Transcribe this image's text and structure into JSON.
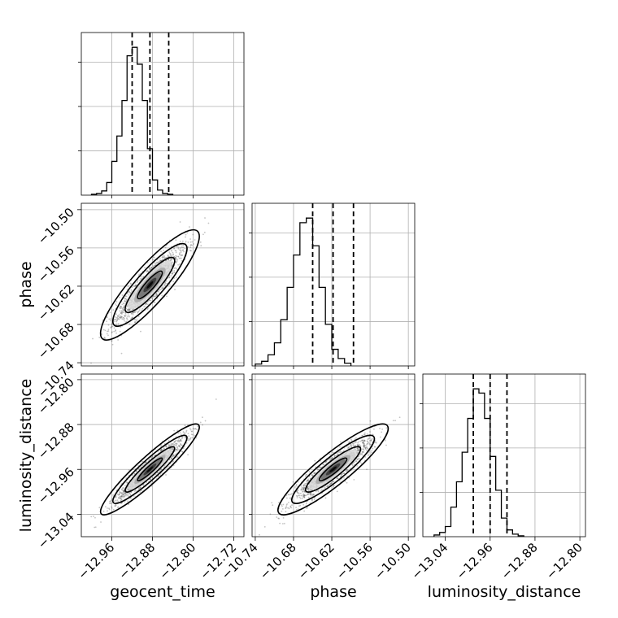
{
  "colors": {
    "line": "#000000",
    "grid": "#b0b0b0",
    "scatter": "#555555"
  },
  "chart_data": {
    "type": "corner",
    "title": "",
    "grid": true,
    "parameters": [
      {
        "name": "geocent_time",
        "label": "geocent_time",
        "range": [
          -13.02,
          -12.7
        ],
        "ticks": [
          -12.96,
          -12.88,
          -12.8,
          -12.72
        ],
        "tick_labels": [
          "−12.96",
          "−12.88",
          "−12.80",
          "−12.72"
        ],
        "quantiles": [
          -12.92,
          -12.885,
          -12.848
        ],
        "hist_edges_start": -13.0,
        "hist_bin_width": 0.01,
        "hist_counts": [
          1,
          2,
          5,
          15,
          40,
          70,
          112,
          165,
          175,
          155,
          112,
          55,
          18,
          6,
          2,
          1
        ]
      },
      {
        "name": "phase",
        "label": "phase",
        "range": [
          -10.745,
          -10.49
        ],
        "ticks": [
          -10.74,
          -10.68,
          -10.62,
          -10.56,
          -10.5
        ],
        "tick_labels": [
          "−10.74",
          "−10.68",
          "−10.62",
          "−10.56",
          "−10.50"
        ],
        "quantiles": [
          -10.65,
          -10.618,
          -10.586
        ],
        "hist_edges_start": -10.74,
        "hist_bin_width": 0.01,
        "hist_counts": [
          2,
          5,
          12,
          25,
          50,
          85,
          120,
          155,
          160,
          130,
          85,
          45,
          18,
          8,
          3
        ]
      },
      {
        "name": "luminosity_distance",
        "label": "luminosity_distance",
        "range": [
          -13.08,
          -12.79
        ],
        "ticks": [
          -13.04,
          -12.96,
          -12.88,
          -12.8
        ],
        "tick_labels": [
          "−13.04",
          "−12.96",
          "−12.88",
          "−12.80"
        ],
        "quantiles": [
          -12.99,
          -12.96,
          -12.93
        ],
        "hist_edges_start": -13.06,
        "hist_bin_width": 0.01,
        "hist_counts": [
          2,
          5,
          12,
          35,
          65,
          100,
          140,
          175,
          170,
          140,
          95,
          55,
          22,
          8,
          3,
          1
        ]
      }
    ],
    "correlations": [
      {
        "x": 0,
        "y": 1,
        "rho": 0.88
      },
      {
        "x": 0,
        "y": 2,
        "rho": 0.93
      },
      {
        "x": 1,
        "y": 2,
        "rho": 0.9
      }
    ],
    "scatter_samples": 1400,
    "contour_levels_sigma": [
      0.5,
      1.0,
      1.5,
      2.0
    ]
  }
}
